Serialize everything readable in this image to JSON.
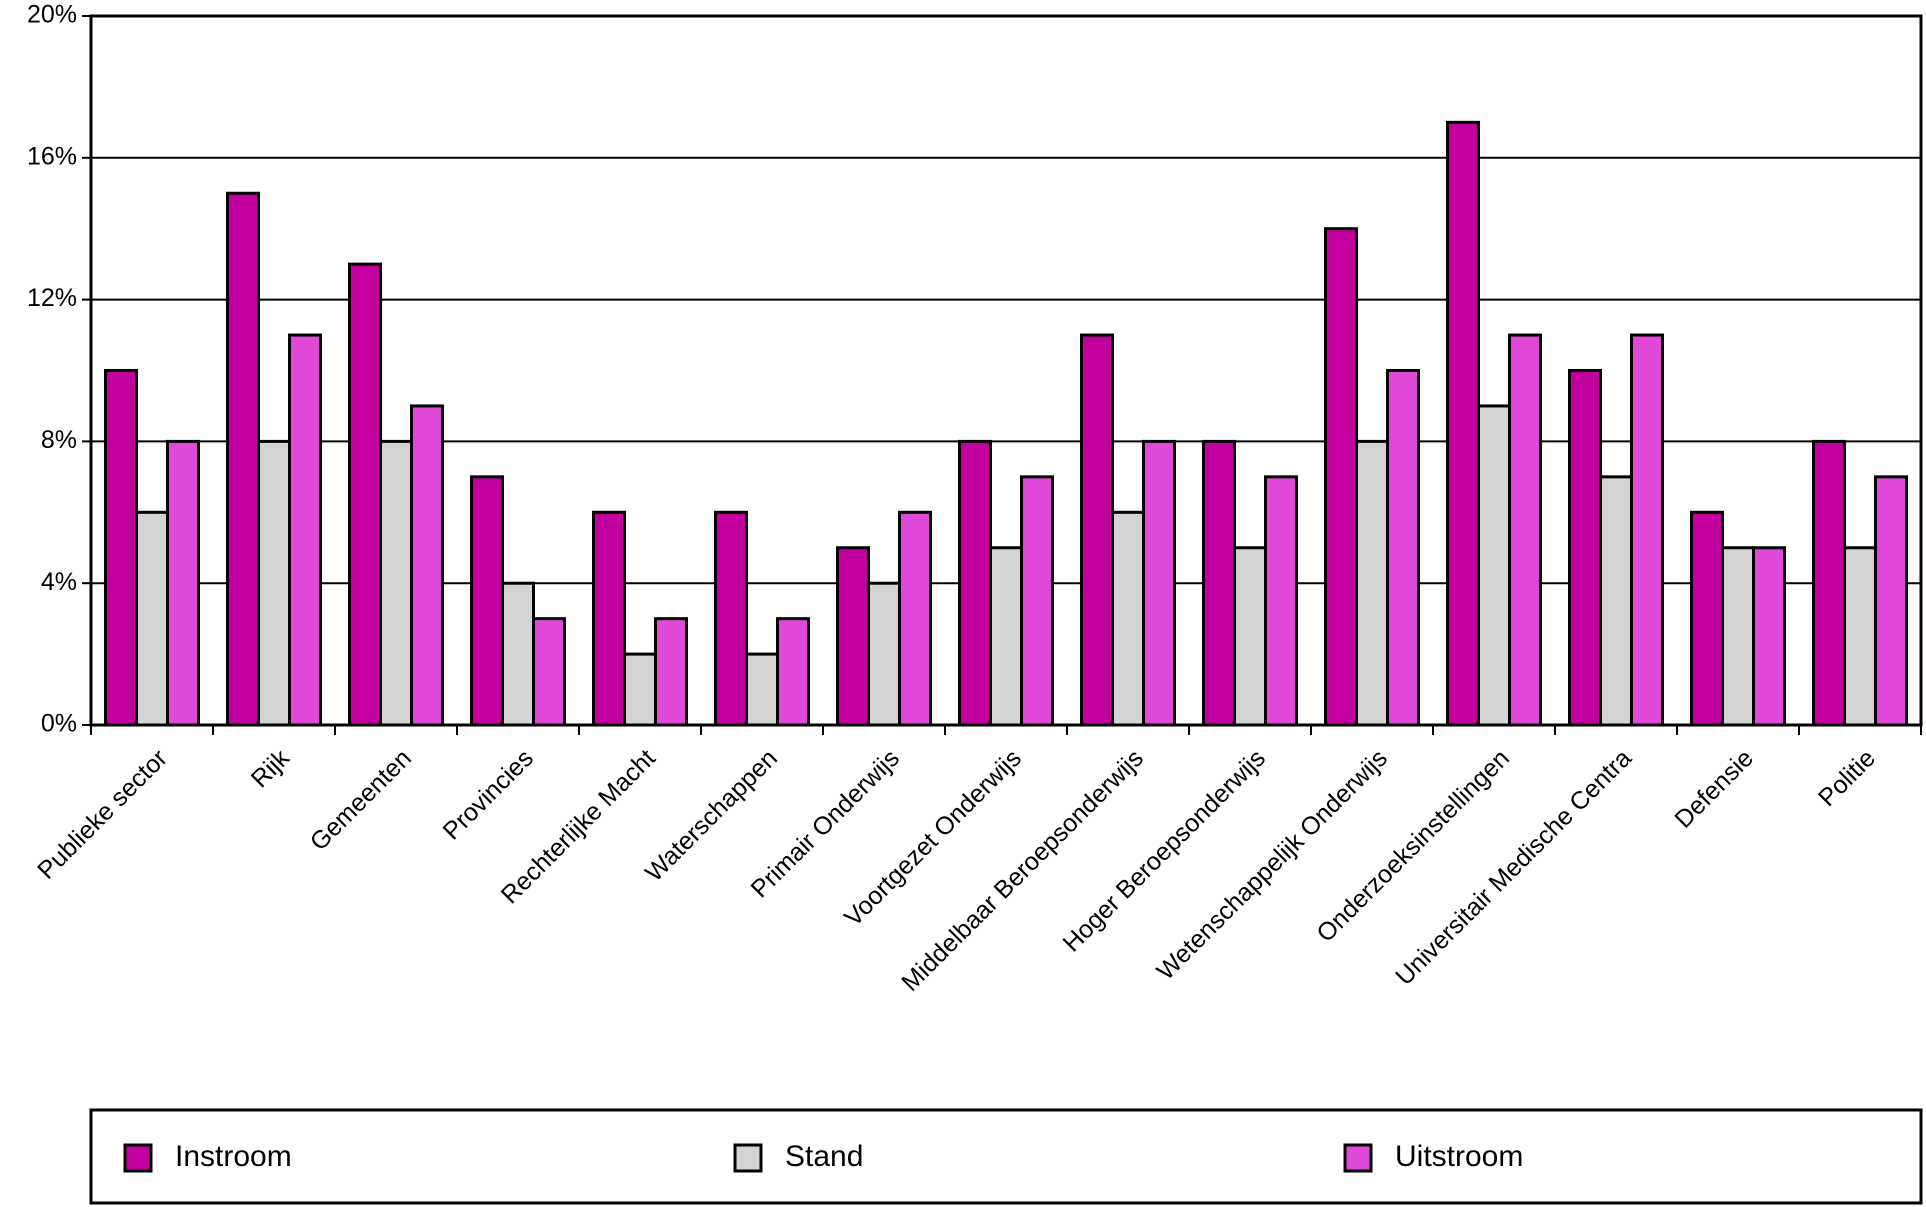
{
  "chart_data": {
    "type": "bar",
    "categories": [
      "Publieke sector",
      "Rijk",
      "Gemeenten",
      "Provincies",
      "Rechterlijke Macht",
      "Waterschappen",
      "Primair Onderwijs",
      "Voortgezet Onderwijs",
      "Middelbaar Beroepsonderwijs",
      "Hoger Beroepsonderwijs",
      "Wetenschappelijk Onderwijs",
      "Onderzoeksinstellingen",
      "Universitair Medische Centra",
      "Defensie",
      "Politie"
    ],
    "series": [
      {
        "name": "Instroom",
        "color": "#c2009e",
        "values": [
          10,
          15,
          13,
          7,
          6,
          6,
          5,
          8,
          11,
          8,
          14,
          17,
          10,
          6,
          8
        ]
      },
      {
        "name": "Stand",
        "color": "#d3d3d3",
        "values": [
          6,
          8,
          8,
          4,
          2,
          2,
          4,
          5,
          6,
          5,
          8,
          9,
          7,
          5,
          5
        ]
      },
      {
        "name": "Uitstroom",
        "color": "#e048d8",
        "values": [
          8,
          11,
          9,
          3,
          3,
          3,
          6,
          7,
          8,
          7,
          10,
          11,
          11,
          5,
          7
        ]
      }
    ],
    "ylim": [
      0,
      20
    ],
    "yticks": [
      {
        "value": 0,
        "label": "0%"
      },
      {
        "value": 4,
        "label": "4%"
      },
      {
        "value": 8,
        "label": "8%"
      },
      {
        "value": 12,
        "label": "12%"
      },
      {
        "value": 16,
        "label": "16%"
      },
      {
        "value": 20,
        "label": "20%"
      }
    ],
    "grid": true,
    "legend": "bottom"
  }
}
